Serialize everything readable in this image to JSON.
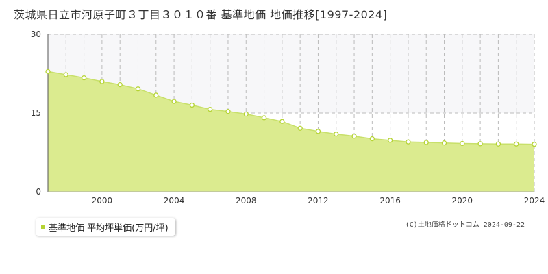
{
  "chart_data": {
    "type": "area",
    "title": "茨城県日立市河原子町３丁目３０１０番 基準地価 地価推移[1997-2024]",
    "x": [
      1997,
      1998,
      1999,
      2000,
      2001,
      2002,
      2003,
      2004,
      2005,
      2006,
      2007,
      2008,
      2009,
      2010,
      2011,
      2012,
      2013,
      2014,
      2015,
      2016,
      2017,
      2018,
      2019,
      2020,
      2021,
      2022,
      2023,
      2024
    ],
    "series": [
      {
        "name": "基準地価 平均坪単価(万円/坪)",
        "values": [
          22.9,
          22.3,
          21.7,
          21.0,
          20.4,
          19.6,
          18.4,
          17.2,
          16.5,
          15.7,
          15.3,
          14.8,
          14.1,
          13.4,
          12.1,
          11.5,
          11.0,
          10.6,
          10.1,
          9.8,
          9.5,
          9.4,
          9.3,
          9.2,
          9.15,
          9.1,
          9.1,
          9.05
        ]
      }
    ],
    "xticks": [
      "2000",
      "2004",
      "2008",
      "2012",
      "2016",
      "2020",
      "2024"
    ],
    "yticks": [
      "0",
      "15",
      "30"
    ],
    "xlim": [
      1997,
      2024
    ],
    "ylim": [
      0,
      30
    ],
    "grid": true,
    "legend": "bottom-left",
    "colors": {
      "fill": "#dbeb8f",
      "line": "#c8e06a",
      "marker": "#b5d334",
      "shade": "#f7f7f9",
      "grid": "#bbbbbb"
    }
  },
  "legend": {
    "label": "基準地価 平均坪単価(万円/坪)"
  },
  "copyright": "(C)土地価格ドットコム 2024-09-22"
}
